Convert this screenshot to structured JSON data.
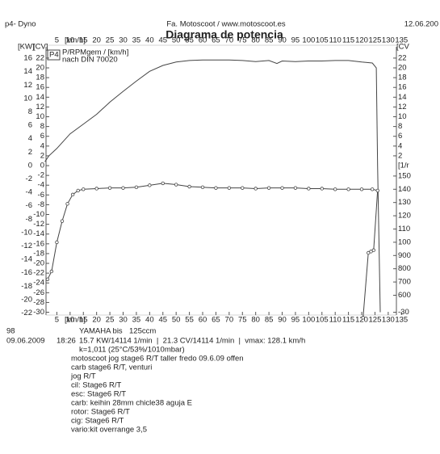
{
  "header": {
    "left": "p4- Dyno",
    "center": "Fa. Motoscoot / www.motoscoot.es",
    "right": "12.06.200"
  },
  "chart_data": {
    "type": "line",
    "title": "Diagrama de potencia",
    "x_label": "[km/h]",
    "kw_label": "[KW]",
    "y_label": "[CV]",
    "y2_label": "[CV",
    "rpm_label": "[1/r",
    "legend": {
      "tag": "P4",
      "lines": [
        "P/RPMgem / [km/h]",
        "nach DIN 70020"
      ]
    },
    "xlim": [
      0,
      134
    ],
    "xticks": [
      5,
      10,
      15,
      20,
      25,
      30,
      35,
      40,
      45,
      50,
      55,
      60,
      65,
      70,
      75,
      80,
      85,
      90,
      95,
      100,
      105,
      110,
      115,
      120,
      125,
      130,
      135
    ],
    "ylim": [
      -31.4,
      24.3
    ],
    "yticks": [
      22,
      20,
      18,
      16,
      14,
      12,
      10,
      8,
      6,
      4,
      2,
      0,
      -2,
      -4,
      -6,
      -8,
      -10,
      -12,
      -14,
      -16,
      -18,
      -20,
      -22,
      -24,
      -26,
      -28,
      -30
    ],
    "kw_lim": [
      -22.9,
      17.7
    ],
    "kw_ticks": [
      16,
      14,
      12,
      10,
      8,
      6,
      4,
      2,
      0,
      -2,
      -4,
      -6,
      -8,
      -10,
      -12,
      -14,
      -16,
      -18,
      -20,
      -22
    ],
    "y2lim": [
      -31.4,
      24.3
    ],
    "y2ticks": [
      22,
      20,
      18,
      16,
      14,
      12,
      10,
      8,
      6,
      4,
      2,
      -30
    ],
    "rpm_lim": [
      4200,
      24750
    ],
    "rpm_ticks": [
      {
        "value": 15000,
        "label": "150"
      },
      {
        "value": 14000,
        "label": "140"
      },
      {
        "value": 13000,
        "label": "130"
      },
      {
        "value": 12000,
        "label": "120"
      },
      {
        "value": 11000,
        "label": "110"
      },
      {
        "value": 10000,
        "label": "100"
      },
      {
        "value": 9000,
        "label": "900"
      },
      {
        "value": 8000,
        "label": "800"
      },
      {
        "value": 7000,
        "label": "700"
      },
      {
        "value": 6000,
        "label": "600"
      }
    ],
    "series": [
      {
        "color": "#444444",
        "axis": "y",
        "x": [
          0.5,
          2,
          5,
          10,
          15,
          20,
          25,
          30,
          35,
          40,
          45,
          50,
          55,
          60,
          65,
          70,
          75,
          80,
          85,
          88,
          90,
          95,
          100,
          105,
          110,
          115,
          120,
          124,
          125.5,
          126,
          127
        ],
        "values": [
          0.8,
          2,
          3.5,
          6.5,
          8.5,
          10.5,
          13,
          15.2,
          17.3,
          19.3,
          20.5,
          21.2,
          21.5,
          21.6,
          21.6,
          21.6,
          21.5,
          21.3,
          21.5,
          20.9,
          21.4,
          21.3,
          21.4,
          21.4,
          21.5,
          21.5,
          21.2,
          21,
          20,
          0,
          -30
        ]
      },
      {
        "color": "#444444",
        "axis": "rpm",
        "marker": "circle",
        "x": [
          1.5,
          3,
          5,
          7,
          9,
          11,
          13,
          15,
          20,
          25,
          30,
          35,
          40,
          45,
          50,
          55,
          60,
          65,
          70,
          75,
          80,
          85,
          90,
          95,
          100,
          105,
          110,
          115,
          120,
          124,
          126,
          124.5,
          123.5,
          122.5,
          120.5
        ],
        "values": [
          7200,
          7800,
          10000,
          11600,
          12900,
          13600,
          13900,
          14000,
          14050,
          14100,
          14100,
          14150,
          14300,
          14450,
          14350,
          14200,
          14150,
          14100,
          14100,
          14100,
          14050,
          14100,
          14100,
          14100,
          14050,
          14050,
          14000,
          14000,
          14000,
          14000,
          13900,
          9400,
          9300,
          9200,
          4300
        ]
      }
    ]
  },
  "footer": {
    "run": "98",
    "date": "09.06.2009",
    "time": "18:26",
    "model": "YAMAHA bis",
    "cc": "125ccm",
    "result": "15.7 KW/14114 1/min  |  21.3 CV/14114 1/min  |  vmax: 128.1 km/h",
    "correction": "k=1,011 (25°C/53%/1010mbar)",
    "notes": [
      "motoscoot jog stage6 R/T taller fredo 09.6.09 offen",
      "carb stage6 R/T, venturi",
      "jog R/T",
      "cil: Stage6 R/T",
      "esc: Stage6 R/T",
      "carb: keihin 28mm chicle38 aguja E",
      "rotor: Stage6 R/T",
      "cig: Stage6 R/T",
      "vario:kit overrange 3,5"
    ]
  }
}
